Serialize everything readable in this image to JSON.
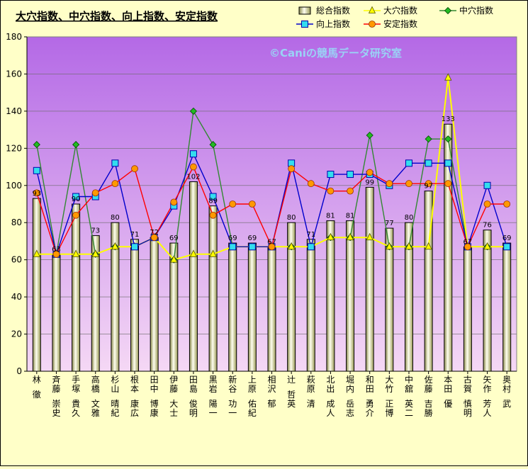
{
  "chart_data": {
    "type": "bar",
    "title": "大穴指数、中穴指数、向上指数、安定指数",
    "watermark": "©Caniの競馬データ研究室",
    "xlabel": "",
    "ylabel": "",
    "ylim": [
      0,
      180
    ],
    "yticks": [
      0,
      20,
      40,
      60,
      80,
      100,
      120,
      140,
      160,
      180
    ],
    "grid": true,
    "legend_position": "top-right",
    "categories": [
      "林 徹",
      "斉藤 崇史",
      "手塚 貴久",
      "高橋 文雅",
      "杉山 晴紀",
      "根本 康広",
      "田中 博康",
      "伊藤 大士",
      "田島 俊明",
      "黒岩 陽一",
      "新谷 功一",
      "上原 佑紀",
      "相沢 郁",
      "辻 哲英",
      "萩原 清",
      "北出 成人",
      "堀内 岳志",
      "和田 勇介",
      "大竹 正博",
      "中舘 英二",
      "佐藤 吉勝",
      "本田 優",
      "古賀 慎明",
      "矢作 芳人",
      "奥村 武"
    ],
    "series": [
      {
        "name": "総合指数",
        "kind": "bar",
        "color": "#f2f2c0",
        "values": [
          93,
          63,
          90,
          73,
          80,
          71,
          72,
          69,
          102,
          89,
          69,
          69,
          67,
          80,
          71,
          81,
          81,
          99,
          77,
          80,
          97,
          133,
          67,
          76,
          69
        ]
      },
      {
        "name": "大穴指数",
        "kind": "line",
        "color": "#ffff00",
        "marker": "triangle",
        "values": [
          63,
          63,
          63,
          63,
          67,
          67,
          72,
          60,
          63,
          63,
          67,
          67,
          67,
          67,
          67,
          72,
          72,
          72,
          67,
          67,
          67,
          158,
          67,
          67,
          67
        ]
      },
      {
        "name": "中穴指数",
        "kind": "line",
        "color": "#338833",
        "marker": "diamond",
        "values": [
          122,
          63,
          122,
          63,
          67,
          67,
          72,
          60,
          140,
          122,
          67,
          67,
          67,
          67,
          67,
          72,
          72,
          127,
          67,
          67,
          125,
          125,
          67,
          67,
          67
        ]
      },
      {
        "name": "向上指数",
        "kind": "line",
        "color": "#0000cc",
        "marker": "square",
        "values": [
          108,
          63,
          94,
          94,
          112,
          67,
          72,
          89,
          117,
          94,
          67,
          67,
          67,
          112,
          67,
          106,
          106,
          106,
          100,
          112,
          112,
          112,
          67,
          100,
          67
        ]
      },
      {
        "name": "安定指数",
        "kind": "line",
        "color": "#ff0000",
        "marker": "circle",
        "values": [
          96,
          63,
          84,
          96,
          101,
          109,
          72,
          91,
          110,
          84,
          90,
          90,
          67,
          109,
          101,
          97,
          97,
          107,
          101,
          101,
          101,
          101,
          67,
          90,
          90
        ]
      }
    ]
  }
}
